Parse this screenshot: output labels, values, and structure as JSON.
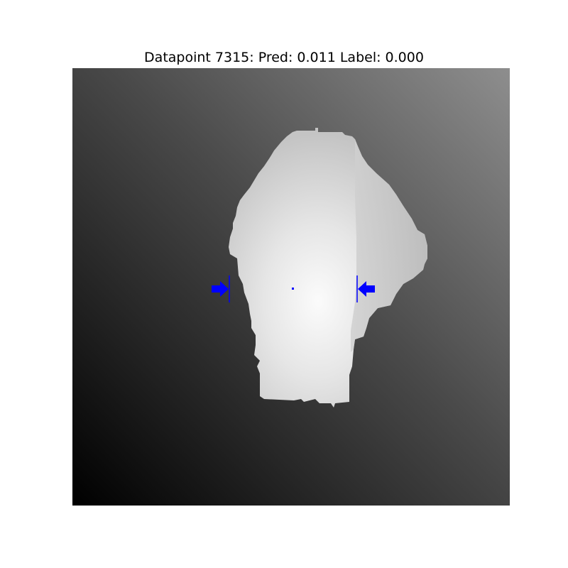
{
  "title": "Datapoint 7315: Pred: 0.011 Label: 0.000",
  "colors": {
    "marker": "#0000ff",
    "background_dark": "#000000",
    "background_light": "#8c8c8c",
    "object_highlight": "#ffffff"
  },
  "prediction": 0.011,
  "label": 0.0
}
